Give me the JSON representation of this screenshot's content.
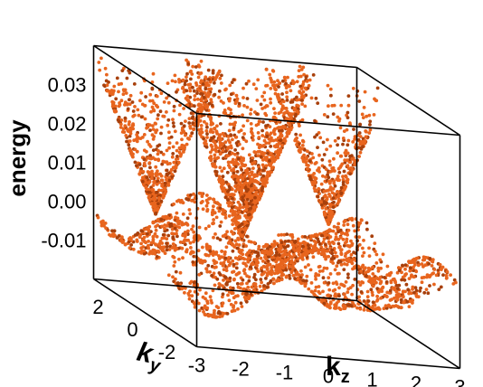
{
  "chart_data": {
    "type": "scatter",
    "title": "",
    "zlabel": "energy",
    "ylabel_main": "k",
    "ylabel_sub": "y",
    "xlabel_main": "k",
    "xlabel_sub": "z",
    "z_ticks": [
      "0.03",
      "0.02",
      "0.01",
      "0.00",
      "-0.01"
    ],
    "z_tick_values": [
      0.03,
      0.02,
      0.01,
      0.0,
      -0.01
    ],
    "y_ticks": [
      "2",
      "0",
      "-2"
    ],
    "y_tick_values": [
      2,
      0,
      -2
    ],
    "x_ticks": [
      "-3",
      "-2",
      "-1",
      "0",
      "1",
      "2",
      "3"
    ],
    "x_tick_values": [
      -3,
      -2,
      -1,
      0,
      1,
      2,
      3
    ],
    "xlim": [
      -3,
      3
    ],
    "ylim": [
      -3,
      3
    ],
    "zlim": [
      -0.02,
      0.04
    ],
    "marker_color": "#e8651e",
    "marker_shadow_color": "#a8400c",
    "description_series": [
      {
        "kind": "cone",
        "apex_kz": -0.6,
        "apex_ky": 0.5,
        "apex_energy": 0.0
      },
      {
        "kind": "cone",
        "apex_kz": -1.9,
        "apex_ky": 2.2,
        "apex_energy": 0.0
      },
      {
        "kind": "cone",
        "apex_kz": 0.4,
        "apex_ky": 2.6,
        "apex_energy": 0.0
      },
      {
        "kind": "cone",
        "apex_kz": 2.2,
        "apex_ky": 2.6,
        "apex_energy": 0.0
      },
      {
        "kind": "surface",
        "energy_min": -0.012,
        "energy_max": 0.004
      }
    ]
  }
}
